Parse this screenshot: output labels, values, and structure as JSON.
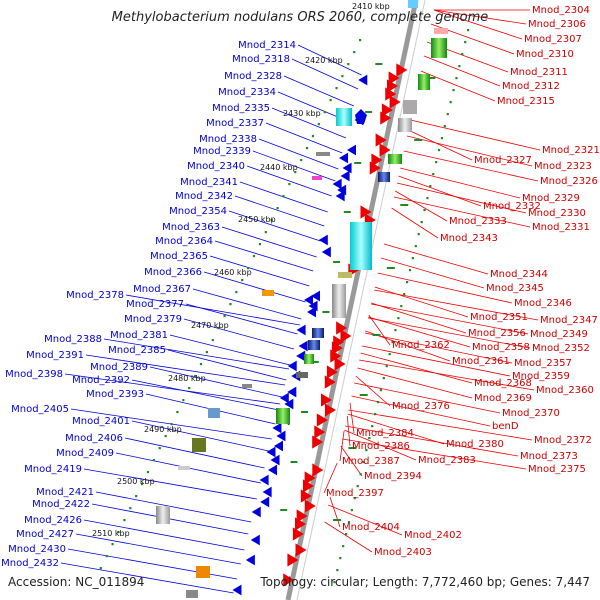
{
  "title": "Methylobacterium nodulans ORS 2060, complete genome",
  "accession": "Accession: NC_011894",
  "summary": "Topology: circular; Length: 7,772,460 bp; Genes: 7,447",
  "colors": {
    "backbone": "#999999",
    "forward_strand": "#ee0000",
    "reverse_strand": "#0000dd",
    "label_left": "#0000cc",
    "label_right": "#cc0000",
    "tick": "#228822"
  },
  "scale_labels": [
    "2410 kbp",
    "2420 kbp",
    "2430 kbp",
    "2440 kbp",
    "2450 kbp",
    "2460 kbp",
    "2470 kbp",
    "2480 kbp",
    "2490 kbp",
    "2500 kbp",
    "2510 kbp"
  ],
  "left_labels": [
    "Mnod_2314",
    "Mnod_2318",
    "Mnod_2328",
    "Mnod_2334",
    "Mnod_2335",
    "Mnod_2337",
    "Mnod_2338",
    "Mnod_2339",
    "Mnod_2340",
    "Mnod_2341",
    "Mnod_2342",
    "Mnod_2354",
    "Mnod_2363",
    "Mnod_2364",
    "Mnod_2365",
    "Mnod_2366",
    "Mnod_2367",
    "Mnod_2378",
    "Mnod_2377",
    "Mnod_2379",
    "Mnod_2381",
    "Mnod_2388",
    "Mnod_2385",
    "Mnod_2391",
    "Mnod_2389",
    "Mnod_2398",
    "Mnod_2392",
    "Mnod_2393",
    "Mnod_2405",
    "Mnod_2401",
    "Mnod_2406",
    "Mnod_2409",
    "Mnod_2419",
    "Mnod_2421",
    "Mnod_2422",
    "Mnod_2426",
    "Mnod_2427",
    "Mnod_2430",
    "Mnod_2432"
  ],
  "right_labels": [
    "Mnod_2304",
    "Mnod_2306",
    "Mnod_2307",
    "Mnod_2310",
    "Mnod_2311",
    "Mnod_2312",
    "Mnod_2315",
    "Mnod_2321",
    "Mnod_2327",
    "Mnod_2323",
    "Mnod_2326",
    "Mnod_2329",
    "Mnod_2332",
    "Mnod_2330",
    "Mnod_2333",
    "Mnod_2331",
    "Mnod_2343",
    "Mnod_2344",
    "Mnod_2345",
    "Mnod_2346",
    "Mnod_2347",
    "Mnod_2351",
    "Mnod_2356",
    "Mnod_2349",
    "Mnod_2362",
    "Mnod_2358",
    "Mnod_2352",
    "Mnod_2361",
    "Mnod_2357",
    "Mnod_2359",
    "Mnod_2368",
    "Mnod_2360",
    "Mnod_2369",
    "Mnod_2376",
    "Mnod_2370",
    "benD",
    "Mnod_2384",
    "Mnod_2380",
    "Mnod_2372",
    "Mnod_2386",
    "Mnod_2383",
    "Mnod_2373",
    "Mnod_2387",
    "Mnod_2375",
    "Mnod_2394",
    "Mnod_2397",
    "Mnod_2404",
    "Mnod_2402",
    "Mnod_2403"
  ]
}
